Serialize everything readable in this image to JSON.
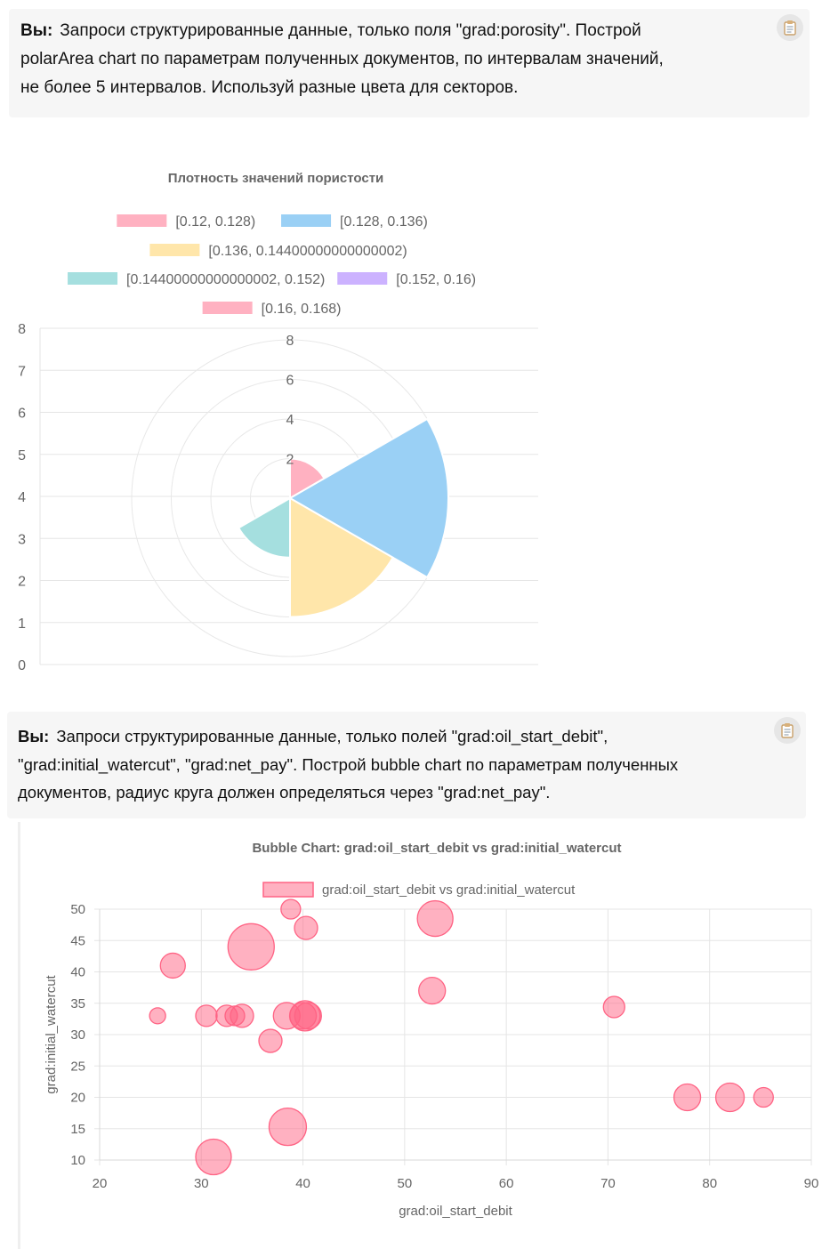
{
  "messages": [
    {
      "sender": "Вы:",
      "lines": [
        "Запроси структурированные данные, только поля \"grad:porosity\". Построй",
        "polarArea chart по параметрам полученных документов, по интервалам значений,",
        "не более 5 интервалов. Используй разные цвета для секторов."
      ],
      "copy_icon": "clipboard-icon"
    },
    {
      "sender": "Вы:",
      "lines": [
        "Запроси структурированные данные, только полей \"grad:oil_start_debit\",",
        "\"grad:initial_watercut\", \"grad:net_pay\". Построй bubble chart по параметрам полученных",
        "документов, радиус круга должен определяться через \"grad:net_pay\"."
      ],
      "copy_icon": "clipboard-icon"
    }
  ],
  "chart_data": [
    {
      "type": "polarArea",
      "title": "Плотность значений пористости",
      "categories": [
        "[0.12, 0.128)",
        "[0.128, 0.136)",
        "[0.136, 0.14400000000000002)",
        "[0.14400000000000002, 0.152)",
        "[0.152, 0.16)",
        "[0.16, 0.168)"
      ],
      "values": [
        2,
        8,
        6,
        3,
        0,
        0
      ],
      "colors": [
        "#ffb1c1",
        "#9ad0f5",
        "#ffe6aa",
        "#a5dfdf",
        "#ccb2ff",
        "#ffb1c1"
      ],
      "radial_ticks": [
        "2",
        "4",
        "6",
        "8"
      ],
      "radial_max": 8,
      "y_ticks": [
        "0",
        "1",
        "2",
        "3",
        "4",
        "5",
        "6",
        "7",
        "8"
      ],
      "legend": "top"
    },
    {
      "type": "bubble",
      "title": "Bubble Chart: grad:oil_start_debit vs grad:initial_watercut",
      "series": [
        {
          "name": "grad:oil_start_debit vs grad:initial_watercut",
          "points": [
            {
              "x": 25.7,
              "y": 33,
              "r": 9
            },
            {
              "x": 27.2,
              "y": 41,
              "r": 14
            },
            {
              "x": 30.5,
              "y": 33,
              "r": 12
            },
            {
              "x": 31.2,
              "y": 10.5,
              "r": 20
            },
            {
              "x": 32.5,
              "y": 33,
              "r": 12
            },
            {
              "x": 33.3,
              "y": 33,
              "r": 11
            },
            {
              "x": 34.0,
              "y": 33,
              "r": 13
            },
            {
              "x": 34.9,
              "y": 44,
              "r": 26
            },
            {
              "x": 36.8,
              "y": 29,
              "r": 13
            },
            {
              "x": 38.4,
              "y": 33,
              "r": 15
            },
            {
              "x": 38.5,
              "y": 15.3,
              "r": 21
            },
            {
              "x": 38.8,
              "y": 50,
              "r": 11
            },
            {
              "x": 40.0,
              "y": 33,
              "r": 15
            },
            {
              "x": 40.2,
              "y": 33,
              "r": 17
            },
            {
              "x": 40.3,
              "y": 47,
              "r": 13
            },
            {
              "x": 40.5,
              "y": 33,
              "r": 15
            },
            {
              "x": 52.7,
              "y": 37,
              "r": 15
            },
            {
              "x": 53.0,
              "y": 48.5,
              "r": 20
            },
            {
              "x": 70.6,
              "y": 34.4,
              "r": 12
            },
            {
              "x": 77.8,
              "y": 20,
              "r": 15
            },
            {
              "x": 82.0,
              "y": 20,
              "r": 16
            },
            {
              "x": 85.3,
              "y": 20,
              "r": 11
            }
          ]
        }
      ],
      "xlabel": "grad:oil_start_debit",
      "ylabel": "grad:initial_watercut",
      "xlim": [
        20,
        90
      ],
      "ylim": [
        10,
        50
      ],
      "x_ticks": [
        "20",
        "30",
        "40",
        "50",
        "60",
        "70",
        "80",
        "90"
      ],
      "y_ticks": [
        "10",
        "15",
        "20",
        "25",
        "30",
        "35",
        "40",
        "45",
        "50"
      ],
      "color": "#ff6384",
      "grid": true,
      "legend": "top"
    }
  ]
}
